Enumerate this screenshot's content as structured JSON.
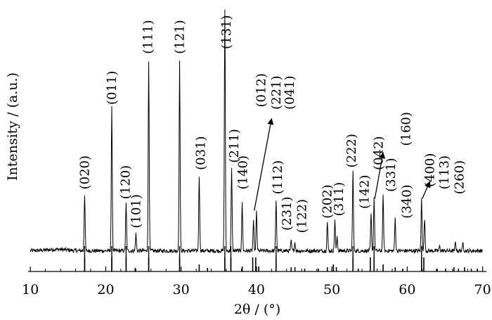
{
  "chart_data": {
    "type": "line",
    "xlabel": "2θ / (°)",
    "ylabel": "Intensity / (a.u.)",
    "xlim": [
      9.7,
      70.5
    ],
    "ylim": [
      0,
      100
    ],
    "x_ticks": [
      10,
      20,
      30,
      40,
      50,
      60,
      70
    ],
    "x_tick_labels": [
      "10",
      "20",
      "30",
      "40",
      "50",
      "60",
      "70"
    ],
    "grid": false,
    "legend": "none",
    "pattern_peaks": [
      {
        "x": 17.2,
        "y": 23.5
      },
      {
        "x": 20.8,
        "y": 59.0
      },
      {
        "x": 22.7,
        "y": 19.5
      },
      {
        "x": 24.0,
        "y": 7.0
      },
      {
        "x": 25.7,
        "y": 78.5
      },
      {
        "x": 29.8,
        "y": 78.0
      },
      {
        "x": 32.4,
        "y": 31.0
      },
      {
        "x": 35.8,
        "y": 100.0
      },
      {
        "x": 36.7,
        "y": 34.0
      },
      {
        "x": 38.1,
        "y": 19.5
      },
      {
        "x": 39.6,
        "y": 12.0
      },
      {
        "x": 40.0,
        "y": 16.0
      },
      {
        "x": 42.6,
        "y": 21.0
      },
      {
        "x": 44.6,
        "y": 4.0
      },
      {
        "x": 45.1,
        "y": 3.5
      },
      {
        "x": 49.4,
        "y": 12.0
      },
      {
        "x": 50.4,
        "y": 13.0
      },
      {
        "x": 50.7,
        "y": 6.0
      },
      {
        "x": 52.8,
        "y": 33.0
      },
      {
        "x": 55.2,
        "y": 15.0
      },
      {
        "x": 55.6,
        "y": 22.0
      },
      {
        "x": 56.8,
        "y": 22.5
      },
      {
        "x": 58.4,
        "y": 13.5
      },
      {
        "x": 61.9,
        "y": 21.5
      },
      {
        "x": 62.3,
        "y": 13.5
      },
      {
        "x": 64.3,
        "y": 2.0
      },
      {
        "x": 66.4,
        "y": 3.5
      },
      {
        "x": 67.4,
        "y": 3.5
      }
    ],
    "reference_lines": [
      {
        "x": 17.2,
        "h": 1.0
      },
      {
        "x": 20.8,
        "h": 1.0
      },
      {
        "x": 22.7,
        "h": 1.0
      },
      {
        "x": 23.9,
        "h": 0.25
      },
      {
        "x": 25.7,
        "h": 1.0
      },
      {
        "x": 29.8,
        "h": 1.0
      },
      {
        "x": 32.4,
        "h": 0.5
      },
      {
        "x": 33.5,
        "h": 0.25
      },
      {
        "x": 35.8,
        "h": 1.0
      },
      {
        "x": 36.6,
        "h": 1.0
      },
      {
        "x": 38.1,
        "h": 0.35
      },
      {
        "x": 39.5,
        "h": 1.0
      },
      {
        "x": 39.9,
        "h": 1.0
      },
      {
        "x": 40.3,
        "h": 0.35
      },
      {
        "x": 42.6,
        "h": 1.0
      },
      {
        "x": 44.6,
        "h": 0.3
      },
      {
        "x": 45.1,
        "h": 0.3
      },
      {
        "x": 46.4,
        "h": 0.2
      },
      {
        "x": 48.2,
        "h": 0.2
      },
      {
        "x": 49.4,
        "h": 0.3
      },
      {
        "x": 50.2,
        "h": 0.5
      },
      {
        "x": 50.6,
        "h": 0.3
      },
      {
        "x": 52.8,
        "h": 1.0
      },
      {
        "x": 53.5,
        "h": 0.2
      },
      {
        "x": 55.1,
        "h": 1.0
      },
      {
        "x": 55.6,
        "h": 1.0
      },
      {
        "x": 56.8,
        "h": 0.5
      },
      {
        "x": 58.4,
        "h": 0.3
      },
      {
        "x": 59.4,
        "h": 0.2
      },
      {
        "x": 61.9,
        "h": 1.0
      },
      {
        "x": 62.2,
        "h": 1.0
      },
      {
        "x": 63.9,
        "h": 0.2
      },
      {
        "x": 65.1,
        "h": 0.2
      },
      {
        "x": 66.2,
        "h": 0.3
      },
      {
        "x": 66.8,
        "h": 0.2
      },
      {
        "x": 67.6,
        "h": 0.3
      },
      {
        "x": 68.5,
        "h": 0.2
      },
      {
        "x": 69.3,
        "h": 0.2
      }
    ],
    "annotations": [
      {
        "text": "(020)",
        "x": 17.2,
        "y": 24
      },
      {
        "text": "(011)",
        "x": 20.8,
        "y": 59
      },
      {
        "text": "(120)",
        "x": 22.6,
        "y": 20
      },
      {
        "text": "(101)",
        "x": 24.0,
        "y": 8
      },
      {
        "text": "(111)",
        "x": 25.6,
        "y": 80
      },
      {
        "text": "(121)",
        "x": 29.8,
        "y": 80
      },
      {
        "text": "(031)",
        "x": 32.6,
        "y": 32
      },
      {
        "text": "(131)",
        "x": 36.0,
        "y": 82
      },
      {
        "text": "(211)",
        "x": 37.0,
        "y": 35
      },
      {
        "text": "(140)",
        "x": 38.2,
        "y": 24
      },
      {
        "text": "(012)",
        "x": 40.6,
        "y": 58
      },
      {
        "text": "(221)",
        "x": 42.6,
        "y": 57
      },
      {
        "text": "(041)",
        "x": 44.4,
        "y": 57
      },
      {
        "text": "(112)",
        "x": 42.8,
        "y": 22
      },
      {
        "text": "(231)",
        "x": 44.0,
        "y": 7
      },
      {
        "text": "(122)",
        "x": 46.0,
        "y": 6
      },
      {
        "text": "(202)",
        "x": 49.4,
        "y": 12
      },
      {
        "text": "(311)",
        "x": 50.9,
        "y": 13
      },
      {
        "text": "(222)",
        "x": 52.6,
        "y": 33
      },
      {
        "text": "(142)",
        "x": 54.3,
        "y": 16
      },
      {
        "text": "(042)",
        "x": 56.2,
        "y": 32
      },
      {
        "text": "(331)",
        "x": 57.8,
        "y": 23
      },
      {
        "text": "(160)",
        "x": 59.8,
        "y": 42
      },
      {
        "text": "(340)",
        "x": 59.9,
        "y": 12
      },
      {
        "text": "(400)",
        "x": 63.0,
        "y": 25
      },
      {
        "text": "(113)",
        "x": 64.9,
        "y": 24
      },
      {
        "text": "(260)",
        "x": 66.9,
        "y": 22
      }
    ],
    "arrows": [
      {
        "from": [
          39.7,
          17
        ],
        "to": [
          42.0,
          55
        ]
      },
      {
        "from": [
          55.7,
          22
        ],
        "to": [
          56.8,
          41
        ]
      },
      {
        "from": [
          62.0,
          22
        ],
        "to": [
          63.0,
          29
        ]
      }
    ]
  }
}
